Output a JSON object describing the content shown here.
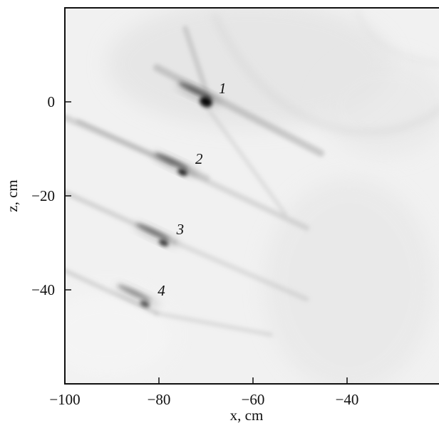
{
  "chart_data": {
    "type": "heatmap",
    "title": "",
    "xlabel": "x, cm",
    "ylabel": "z, cm",
    "xlim": [
      -100,
      -21
    ],
    "ylim": [
      -60,
      20
    ],
    "x_ticks": [
      {
        "value": -100,
        "label": "−100"
      },
      {
        "value": -80,
        "label": "−80"
      },
      {
        "value": -60,
        "label": "−60"
      },
      {
        "value": -40,
        "label": "−40"
      }
    ],
    "y_ticks": [
      {
        "value": 0,
        "label": "0"
      },
      {
        "value": -20,
        "label": "−20"
      },
      {
        "value": -40,
        "label": "−40"
      }
    ],
    "colormap": "grayscale (white = low, black = high)",
    "grid": false,
    "legend": "none",
    "points": [
      {
        "label": "1",
        "x": -70,
        "z": 0
      },
      {
        "label": "2",
        "x": -75,
        "z": -15
      },
      {
        "label": "3",
        "x": -79,
        "z": -30
      },
      {
        "label": "4",
        "x": -83,
        "z": -43
      }
    ]
  }
}
